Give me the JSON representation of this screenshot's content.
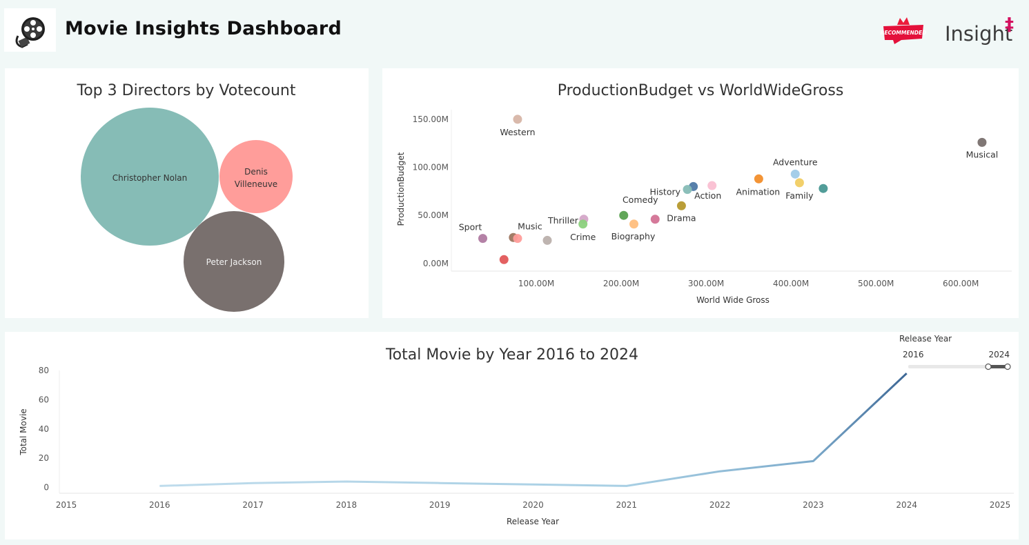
{
  "header": {
    "title": "Movie Insights Dashboard",
    "badge_text": "RECOMMENDED",
    "brand": "Insight",
    "brand_mark": "‡"
  },
  "chart_data": [
    {
      "type": "bubble",
      "title": "Top 3 Directors by Votecount",
      "points": [
        {
          "label": "Christopher Nolan",
          "lines": [
            "Christopher Nolan"
          ],
          "color": "#86bcb6"
        },
        {
          "label": "Denis Villeneuve",
          "lines": [
            "Denis",
            "Villeneuve"
          ],
          "color": "#ff9d9a"
        },
        {
          "label": "Peter Jackson",
          "lines": [
            "Peter Jackson"
          ],
          "color": "#79706e"
        }
      ]
    },
    {
      "type": "scatter",
      "title": "ProductionBudget vs WorldWideGross",
      "xlabel": "World Wide Gross",
      "ylabel": "ProductionBudget",
      "xlim": [
        0,
        660
      ],
      "ylim": [
        -8,
        160
      ],
      "xticks": [
        100,
        200,
        300,
        400,
        500,
        600
      ],
      "xtick_labels": [
        "100.00M",
        "200.00M",
        "300.00M",
        "400.00M",
        "500.00M",
        "600.00M"
      ],
      "yticks": [
        0,
        50,
        100,
        150
      ],
      "ytick_labels": [
        "0.00M",
        "50.00M",
        "100.00M",
        "150.00M"
      ],
      "points": [
        {
          "x": 78,
          "y": 150,
          "label": "Western",
          "color": "#d7b5a6"
        },
        {
          "x": 625,
          "y": 126,
          "label": "Musical",
          "color": "#79706e"
        },
        {
          "x": 405,
          "y": 93,
          "label": "Adventure",
          "color": "#a0cbe8"
        },
        {
          "x": 362,
          "y": 88,
          "label": "Animation",
          "color": "#f28e2b"
        },
        {
          "x": 410,
          "y": 84,
          "label": "Family",
          "color": "#f1ce63"
        },
        {
          "x": 438,
          "y": 78,
          "label": "",
          "color": "#499894"
        },
        {
          "x": 285,
          "y": 80,
          "label": "",
          "color": "#4e79a7"
        },
        {
          "x": 278,
          "y": 77,
          "label": "History",
          "color": "#86bcb6"
        },
        {
          "x": 307,
          "y": 81,
          "label": "Action",
          "color": "#fabfd2"
        },
        {
          "x": 271,
          "y": 60,
          "label": "Drama",
          "color": "#b6992d"
        },
        {
          "x": 203,
          "y": 50,
          "label": "Comedy",
          "color": "#59a14f"
        },
        {
          "x": 215,
          "y": 41,
          "label": "Biography",
          "color": "#ffbe7d"
        },
        {
          "x": 240,
          "y": 46,
          "label": "",
          "color": "#d37295"
        },
        {
          "x": 156,
          "y": 46,
          "label": "Thriller",
          "color": "#d4a6c8"
        },
        {
          "x": 155,
          "y": 41,
          "label": "Crime",
          "color": "#8cd17d"
        },
        {
          "x": 37,
          "y": 26,
          "label": "Sport",
          "color": "#b07aa1"
        },
        {
          "x": 73,
          "y": 27,
          "label": "",
          "color": "#9d7660"
        },
        {
          "x": 78,
          "y": 26,
          "label": "Music",
          "color": "#ff9d9a"
        },
        {
          "x": 113,
          "y": 24,
          "label": "",
          "color": "#bab0ac"
        },
        {
          "x": 62,
          "y": 4,
          "label": "",
          "color": "#e15759"
        }
      ]
    },
    {
      "type": "line",
      "title": "Total Movie by Year 2016 to 2024",
      "xlabel": "Release Year",
      "ylabel": "Total Movie",
      "xlim": [
        2015,
        2025
      ],
      "ylim": [
        -4,
        80
      ],
      "xticks": [
        2015,
        2016,
        2017,
        2018,
        2019,
        2020,
        2021,
        2022,
        2023,
        2024,
        2025
      ],
      "yticks": [
        0,
        20,
        40,
        60,
        80
      ],
      "series": [
        {
          "name": "Total Movie",
          "x": [
            2016,
            2017,
            2018,
            2019,
            2020,
            2021,
            2022,
            2023,
            2024
          ],
          "y": [
            1,
            3,
            4,
            3,
            2,
            1,
            11,
            18,
            78
          ]
        }
      ]
    }
  ],
  "filter": {
    "label": "Release Year",
    "min_label": "2016",
    "max_label": "2024",
    "min": 2016,
    "max": 2024,
    "selected_min": 2024,
    "selected_max": 2024
  }
}
